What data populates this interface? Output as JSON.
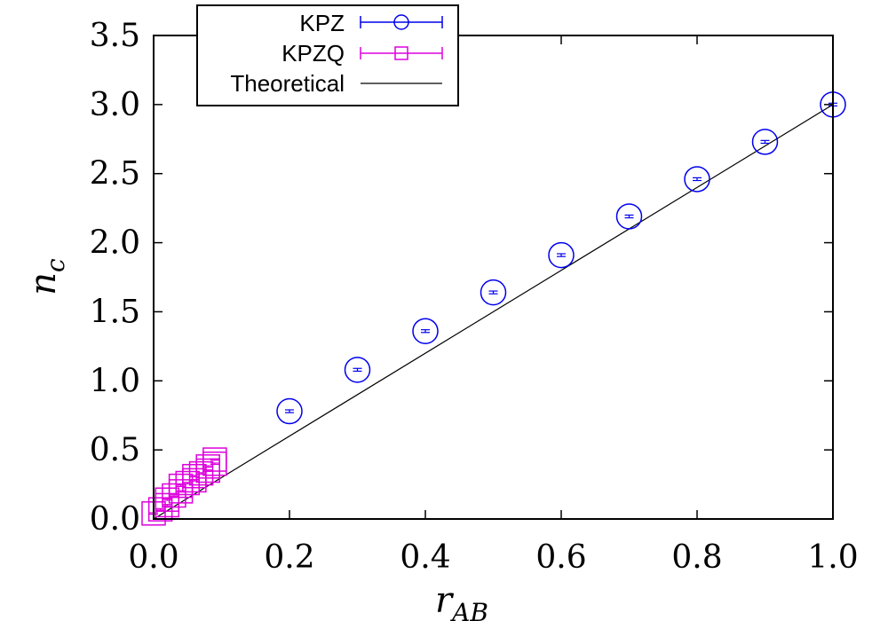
{
  "chart_data": {
    "type": "scatter",
    "title": "",
    "xlabel": "r_AB",
    "ylabel": "n_c",
    "xlabel_main": "r",
    "xlabel_sub": "AB",
    "ylabel_main": "n",
    "ylabel_sub": "c",
    "xlim": [
      0.0,
      1.0
    ],
    "ylim": [
      0.0,
      3.5
    ],
    "grid": false,
    "legend_position": "top-left",
    "xticks": [
      {
        "value": 0.0,
        "label": "0.0"
      },
      {
        "value": 0.2,
        "label": "0.2"
      },
      {
        "value": 0.4,
        "label": "0.4"
      },
      {
        "value": 0.6,
        "label": "0.6"
      },
      {
        "value": 0.8,
        "label": "0.8"
      },
      {
        "value": 1.0,
        "label": "1.0"
      }
    ],
    "yticks": [
      {
        "value": 0.0,
        "label": "0.0"
      },
      {
        "value": 0.5,
        "label": "0.5"
      },
      {
        "value": 1.0,
        "label": "1.0"
      },
      {
        "value": 1.5,
        "label": "1.5"
      },
      {
        "value": 2.0,
        "label": "2.0"
      },
      {
        "value": 2.5,
        "label": "2.5"
      },
      {
        "value": 3.0,
        "label": "3.0"
      },
      {
        "value": 3.5,
        "label": "3.5"
      }
    ],
    "series": [
      {
        "name": "KPZ",
        "marker": "circle",
        "color": "#0000ee",
        "points": [
          {
            "x": 0.2,
            "y": 0.78,
            "err": 0.01
          },
          {
            "x": 0.3,
            "y": 1.08,
            "err": 0.01
          },
          {
            "x": 0.4,
            "y": 1.36,
            "err": 0.01
          },
          {
            "x": 0.5,
            "y": 1.64,
            "err": 0.01
          },
          {
            "x": 0.6,
            "y": 1.91,
            "err": 0.01
          },
          {
            "x": 0.7,
            "y": 2.19,
            "err": 0.01
          },
          {
            "x": 0.8,
            "y": 2.46,
            "err": 0.01
          },
          {
            "x": 0.9,
            "y": 2.73,
            "err": 0.01
          },
          {
            "x": 1.0,
            "y": 3.0,
            "err": 0.01
          }
        ]
      },
      {
        "name": "KPZQ",
        "marker": "square",
        "color": "#dd00dd",
        "points": [
          {
            "x": 0.0,
            "y": 0.04,
            "err": 0.005
          },
          {
            "x": 0.01,
            "y": 0.07,
            "err": 0.005
          },
          {
            "x": 0.02,
            "y": 0.1,
            "err": 0.005
          },
          {
            "x": 0.02,
            "y": 0.14,
            "err": 0.005
          },
          {
            "x": 0.03,
            "y": 0.17,
            "err": 0.005
          },
          {
            "x": 0.04,
            "y": 0.2,
            "err": 0.005
          },
          {
            "x": 0.04,
            "y": 0.24,
            "err": 0.005
          },
          {
            "x": 0.05,
            "y": 0.26,
            "err": 0.005
          },
          {
            "x": 0.06,
            "y": 0.28,
            "err": 0.005
          },
          {
            "x": 0.06,
            "y": 0.31,
            "err": 0.005
          },
          {
            "x": 0.07,
            "y": 0.33,
            "err": 0.005
          },
          {
            "x": 0.08,
            "y": 0.35,
            "err": 0.005
          },
          {
            "x": 0.08,
            "y": 0.38,
            "err": 0.005
          },
          {
            "x": 0.09,
            "y": 0.4,
            "err": 0.005
          },
          {
            "x": 0.09,
            "y": 0.43,
            "err": 0.005
          }
        ]
      },
      {
        "name": "Theoretical",
        "type": "line",
        "color": "#000000",
        "x": [
          0.0,
          1.0
        ],
        "y": [
          0.0,
          3.0
        ]
      }
    ]
  }
}
